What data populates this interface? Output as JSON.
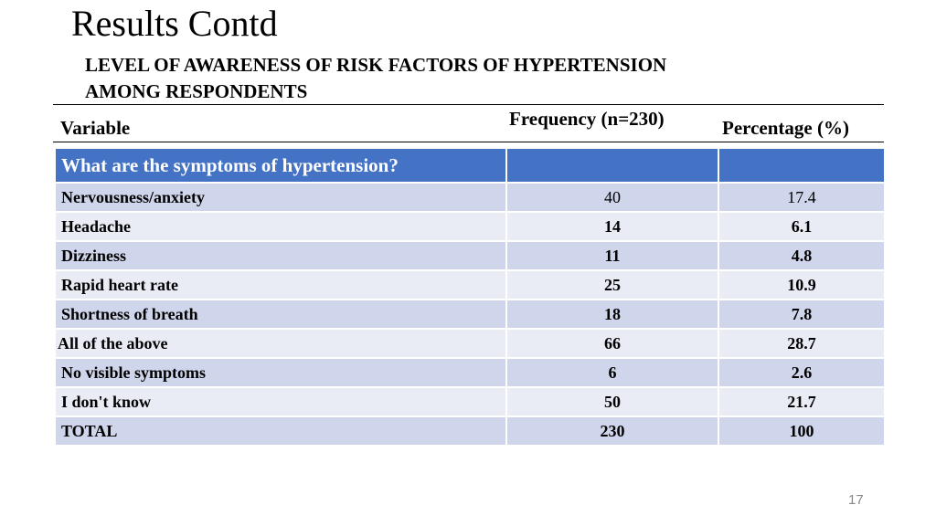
{
  "slide": {
    "title": "Results Contd",
    "subtitle_line1": "LEVEL OF AWARENESS OF RISK FACTORS OF HYPERTENSION",
    "subtitle_line2": "AMONG RESPONDENTS",
    "page_number": "17"
  },
  "table": {
    "headers": {
      "variable": "Variable",
      "frequency": "Frequency (n=230)",
      "percentage": "Percentage (%)"
    },
    "section_label": "What are the symptoms of hypertension?",
    "rows": [
      {
        "label": "Nervousness/anxiety",
        "frequency": "40",
        "percentage": "17.4"
      },
      {
        "label": "Headache",
        "frequency": "14",
        "percentage": "6.1"
      },
      {
        "label": "Dizziness",
        "frequency": "11",
        "percentage": "4.8"
      },
      {
        "label": "Rapid heart rate",
        "frequency": "25",
        "percentage": "10.9"
      },
      {
        "label": "Shortness of breath",
        "frequency": "18",
        "percentage": "7.8"
      },
      {
        "label": "All of the above",
        "frequency": "66",
        "percentage": "28.7"
      },
      {
        "label": "No visible symptoms",
        "frequency": "6",
        "percentage": "2.6"
      },
      {
        "label": "I don't know",
        "frequency": "50",
        "percentage": "21.7"
      },
      {
        "label": "TOTAL",
        "frequency": "230",
        "percentage": "100"
      }
    ]
  }
}
